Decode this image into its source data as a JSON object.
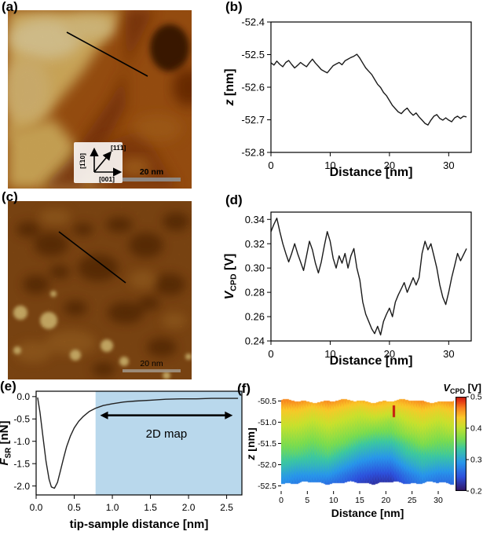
{
  "panels": {
    "a": {
      "label": "(a)",
      "scalebar": "20 nm",
      "axis_vertical": "[1̅10]",
      "axis_diagonal": "[11̅1]",
      "axis_horizontal": "[001]",
      "palette": {
        "bright": "#f2cd7e",
        "base": "#b05a12",
        "dark": "#451b02"
      }
    },
    "b": {
      "label": "(b)"
    },
    "c": {
      "label": "(c)",
      "scalebar": "20 nm",
      "palette": {
        "bright": "#f6d27c",
        "base": "#9a5516",
        "dark": "#5e2a06"
      }
    },
    "d": {
      "label": "(d)"
    },
    "e": {
      "label": "(e)"
    },
    "f": {
      "label": "(f)"
    }
  },
  "chart_data": [
    {
      "panel": "b",
      "type": "line",
      "xlabel": "Distance [nm]",
      "ylabel": {
        "variable": "z",
        "subscript": "",
        "unit": "[nm]"
      },
      "xlim": [
        0,
        33.8
      ],
      "ylim": [
        -52.8,
        -52.4
      ],
      "xticks": [
        0,
        10,
        20,
        30
      ],
      "xtick_labels": [
        "0",
        "10",
        "20",
        "30"
      ],
      "yticks": [
        -52.4,
        -52.5,
        -52.6,
        -52.7,
        -52.8
      ],
      "ytick_labels": [
        "-52.4",
        "-52.5",
        "-52.6",
        "-52.7",
        "-52.8"
      ],
      "x_start": 0,
      "x_step": 0.5,
      "y": [
        -52.525,
        -52.532,
        -52.52,
        -52.53,
        -52.537,
        -52.524,
        -52.518,
        -52.53,
        -52.541,
        -52.533,
        -52.524,
        -52.531,
        -52.537,
        -52.525,
        -52.514,
        -52.526,
        -52.536,
        -52.546,
        -52.551,
        -52.556,
        -52.545,
        -52.534,
        -52.529,
        -52.524,
        -52.531,
        -52.519,
        -52.514,
        -52.509,
        -52.505,
        -52.499,
        -52.511,
        -52.526,
        -52.541,
        -52.551,
        -52.561,
        -52.576,
        -52.591,
        -52.601,
        -52.616,
        -52.626,
        -52.641,
        -52.656,
        -52.666,
        -52.676,
        -52.681,
        -52.671,
        -52.664,
        -52.677,
        -52.686,
        -52.679,
        -52.691,
        -52.701,
        -52.711,
        -52.716,
        -52.701,
        -52.689,
        -52.684,
        -52.696,
        -52.701,
        -52.694,
        -52.701,
        -52.706,
        -52.694,
        -52.689,
        -52.696,
        -52.689,
        -52.691
      ],
      "line_color": "#1a1a1a",
      "grid": false
    },
    {
      "panel": "d",
      "type": "line",
      "xlabel": "Distance [nm]",
      "ylabel": {
        "variable": "V",
        "subscript": "CPD",
        "unit": "[V]"
      },
      "xlim": [
        0,
        33.8
      ],
      "ylim": [
        0.24,
        0.346
      ],
      "xticks": [
        0,
        10,
        20,
        30
      ],
      "xtick_labels": [
        "0",
        "10",
        "20",
        "30"
      ],
      "yticks": [
        0.34,
        0.32,
        0.3,
        0.28,
        0.26,
        0.24
      ],
      "ytick_labels": [
        "0.34",
        "0.32",
        "0.30",
        "0.28",
        "0.26",
        "0.24"
      ],
      "x_start": 0,
      "x_step": 0.5,
      "y": [
        0.33,
        0.336,
        0.341,
        0.33,
        0.32,
        0.312,
        0.305,
        0.312,
        0.32,
        0.312,
        0.305,
        0.298,
        0.31,
        0.322,
        0.315,
        0.304,
        0.296,
        0.305,
        0.318,
        0.33,
        0.322,
        0.308,
        0.3,
        0.31,
        0.304,
        0.312,
        0.3,
        0.31,
        0.316,
        0.3,
        0.29,
        0.272,
        0.262,
        0.256,
        0.25,
        0.246,
        0.252,
        0.245,
        0.256,
        0.262,
        0.267,
        0.26,
        0.272,
        0.278,
        0.283,
        0.288,
        0.28,
        0.286,
        0.292,
        0.286,
        0.292,
        0.312,
        0.322,
        0.315,
        0.32,
        0.31,
        0.3,
        0.286,
        0.276,
        0.27,
        0.28,
        0.292,
        0.302,
        0.312,
        0.306,
        0.311,
        0.316
      ],
      "line_color": "#1a1a1a",
      "grid": false
    },
    {
      "panel": "e",
      "type": "line",
      "xlabel": "tip-sample distance [nm]",
      "ylabel": {
        "variable": "F",
        "subscript": "SR",
        "unit": "[nN]"
      },
      "xlim": [
        0,
        2.7
      ],
      "ylim": [
        -2.2,
        0.12
      ],
      "xticks": [
        0,
        0.5,
        1,
        1.5,
        2,
        2.5
      ],
      "xtick_labels": [
        "0.0",
        "0.5",
        "1.0",
        "1.5",
        "2.0",
        "2.5"
      ],
      "yticks": [
        0,
        -0.5,
        -1,
        -1.5,
        -2
      ],
      "ytick_labels": [
        "0.0",
        "-0.5",
        "-1.0",
        "-1.5",
        "-2.0"
      ],
      "x": [
        0.02,
        0.05,
        0.09,
        0.13,
        0.17,
        0.2,
        0.24,
        0.28,
        0.32,
        0.36,
        0.4,
        0.45,
        0.5,
        0.56,
        0.62,
        0.7,
        0.78,
        0.88,
        1.0,
        1.15,
        1.3,
        1.5,
        1.7,
        1.9,
        2.1,
        2.3,
        2.5,
        2.65
      ],
      "y": [
        -0.02,
        -0.35,
        -0.9,
        -1.45,
        -1.85,
        -2.02,
        -2.05,
        -1.92,
        -1.65,
        -1.38,
        -1.12,
        -0.88,
        -0.7,
        -0.55,
        -0.44,
        -0.33,
        -0.26,
        -0.2,
        -0.16,
        -0.12,
        -0.1,
        -0.08,
        -0.06,
        -0.05,
        -0.05,
        -0.04,
        -0.04,
        -0.04
      ],
      "line_color": "#222222",
      "shaded_region": {
        "x0": 0.78,
        "x1": 2.7,
        "color": "#b9d8ec"
      },
      "annotation": {
        "label": "2D map",
        "arrow_x0": 0.84,
        "arrow_x1": 2.58,
        "arrow_y": -0.42,
        "label_y": -0.92
      },
      "grid": false
    },
    {
      "panel": "f",
      "type": "heatmap",
      "xlabel": "Distance [nm]",
      "ylabel": {
        "variable": "z",
        "subscript": "",
        "unit": "[nm]"
      },
      "colorbar_label": {
        "variable": "V",
        "subscript": "CPD",
        "unit": "[V]"
      },
      "xlim": [
        0,
        33
      ],
      "ylim": [
        -52.62,
        -50.4
      ],
      "xticks": [
        0,
        5,
        10,
        15,
        20,
        25,
        30
      ],
      "xtick_labels": [
        "0",
        "5",
        "10",
        "15",
        "20",
        "25",
        "30"
      ],
      "yticks": [
        -50.5,
        -51,
        -51.5,
        -52,
        -52.5
      ],
      "ytick_labels": [
        "-50.5",
        "-51.0",
        "-51.5",
        "-52.0",
        "-52.5"
      ],
      "colorbar": {
        "vmin": 0.2,
        "vmax": 0.5,
        "ticks": [
          0.5,
          0.4,
          0.3,
          0.2
        ],
        "tick_labels": [
          "0.5",
          "0.4",
          "0.3",
          "0.2"
        ]
      },
      "grid_x": [
        0,
        3,
        6,
        9,
        12,
        15,
        18,
        21,
        24,
        27,
        30,
        33
      ],
      "grid_z": [
        -50.5,
        -50.75,
        -51,
        -51.25,
        -51.5,
        -51.75,
        -52,
        -52.25,
        -52.5
      ],
      "grid_values": [
        [
          0.46,
          0.46,
          0.45,
          0.46,
          0.45,
          0.44,
          0.45,
          0.44,
          0.45,
          0.46,
          0.45,
          0.46
        ],
        [
          0.43,
          0.43,
          0.42,
          0.43,
          0.42,
          0.41,
          0.42,
          0.41,
          0.42,
          0.43,
          0.42,
          0.43
        ],
        [
          0.41,
          0.41,
          0.4,
          0.41,
          0.4,
          0.39,
          0.39,
          0.38,
          0.4,
          0.41,
          0.4,
          0.41
        ],
        [
          0.39,
          0.39,
          0.38,
          0.39,
          0.38,
          0.37,
          0.36,
          0.36,
          0.38,
          0.39,
          0.38,
          0.39
        ],
        [
          0.37,
          0.37,
          0.36,
          0.37,
          0.36,
          0.34,
          0.33,
          0.33,
          0.35,
          0.37,
          0.36,
          0.36
        ],
        [
          0.35,
          0.35,
          0.34,
          0.35,
          0.33,
          0.31,
          0.3,
          0.3,
          0.33,
          0.34,
          0.34,
          0.34
        ],
        [
          0.33,
          0.32,
          0.32,
          0.32,
          0.3,
          0.28,
          0.27,
          0.27,
          0.3,
          0.32,
          0.31,
          0.31
        ],
        [
          0.3,
          0.29,
          0.29,
          0.29,
          0.27,
          0.25,
          0.24,
          0.24,
          0.27,
          0.29,
          0.28,
          0.28
        ],
        [
          0.28,
          0.27,
          0.27,
          0.26,
          0.25,
          0.23,
          0.22,
          0.22,
          0.25,
          0.27,
          0.26,
          0.26
        ]
      ],
      "top_edge_z": -50.5,
      "bottom_edge_z": -52.43,
      "edge_amplitude": 0.035,
      "hotspot": {
        "x": 21.5,
        "z_top": -50.6,
        "z_bottom": -50.88,
        "value": 0.5
      }
    }
  ]
}
